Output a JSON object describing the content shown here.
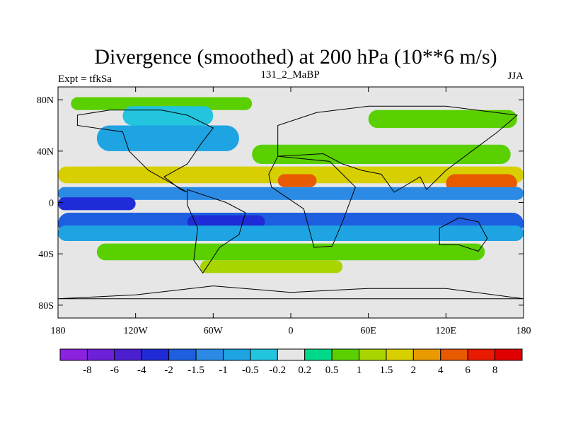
{
  "chart_data": {
    "type": "heatmap",
    "title": "Divergence (smoothed) at 200 hPa (10**6 m/s)",
    "subtitle_left": "Expt = tfkSa",
    "subtitle_center": "131_2_MaBP",
    "subtitle_right": "JJA",
    "x_ticks": [
      "180",
      "120W",
      "60W",
      "0",
      "60E",
      "120E",
      "180"
    ],
    "y_ticks": [
      "80N",
      "40N",
      "0",
      "40S",
      "80S"
    ],
    "x_tick_values": [
      -180,
      -120,
      -60,
      0,
      60,
      120,
      180
    ],
    "y_tick_values": [
      80,
      40,
      0,
      -40,
      -80
    ],
    "xlim": [
      -180,
      180
    ],
    "ylim": [
      -90,
      90
    ],
    "contour_levels": [
      "-8",
      "-6",
      "-4",
      "-2",
      "-1.5",
      "-1",
      "-0.5",
      "-0.2",
      "0.2",
      "0.5",
      "1",
      "1.5",
      "2",
      "4",
      "6",
      "8"
    ],
    "colorbar_colors": [
      "#8a22e0",
      "#6e1fd8",
      "#4b1fd0",
      "#1f2bd6",
      "#1e5fe0",
      "#2b8be4",
      "#1ea4e2",
      "#22c4de",
      "#e6e6e6",
      "#00d98a",
      "#5ad000",
      "#a8d400",
      "#d8cf00",
      "#e89a00",
      "#e85a00",
      "#e81a00",
      "#e00000"
    ],
    "bands": [
      {
        "lat": [
          72,
          82
        ],
        "value": 0.5,
        "lon": [
          -170,
          -30
        ]
      },
      {
        "lat": [
          60,
          75
        ],
        "value": -0.5,
        "lon": [
          -130,
          -60
        ]
      },
      {
        "lat": [
          58,
          72
        ],
        "value": 0.5,
        "lon": [
          60,
          175
        ]
      },
      {
        "lat": [
          40,
          60
        ],
        "value": -1.0,
        "lon": [
          -150,
          -40
        ]
      },
      {
        "lat": [
          30,
          45
        ],
        "value": 0.5,
        "lon": [
          -30,
          170
        ]
      },
      {
        "lat": [
          15,
          28
        ],
        "value": 1.5,
        "lon": [
          -180,
          180
        ]
      },
      {
        "lat": [
          12,
          22
        ],
        "value": 4.0,
        "lon": [
          -10,
          20
        ]
      },
      {
        "lat": [
          8,
          22
        ],
        "value": 4.0,
        "lon": [
          120,
          175
        ]
      },
      {
        "lat": [
          2,
          12
        ],
        "value": -1.5,
        "lon": [
          -180,
          180
        ]
      },
      {
        "lat": [
          -6,
          4
        ],
        "value": -4.0,
        "lon": [
          -180,
          -120
        ]
      },
      {
        "lat": [
          -25,
          -8
        ],
        "value": -2.0,
        "lon": [
          -180,
          180
        ]
      },
      {
        "lat": [
          -20,
          -10
        ],
        "value": -4.0,
        "lon": [
          -80,
          -20
        ]
      },
      {
        "lat": [
          -30,
          -18
        ],
        "value": -1.0,
        "lon": [
          -180,
          180
        ]
      },
      {
        "lat": [
          -45,
          -32
        ],
        "value": 0.5,
        "lon": [
          -150,
          150
        ]
      },
      {
        "lat": [
          -55,
          -45
        ],
        "value": 1.0,
        "lon": [
          -70,
          40
        ]
      }
    ],
    "legend_placement": "bottom"
  }
}
